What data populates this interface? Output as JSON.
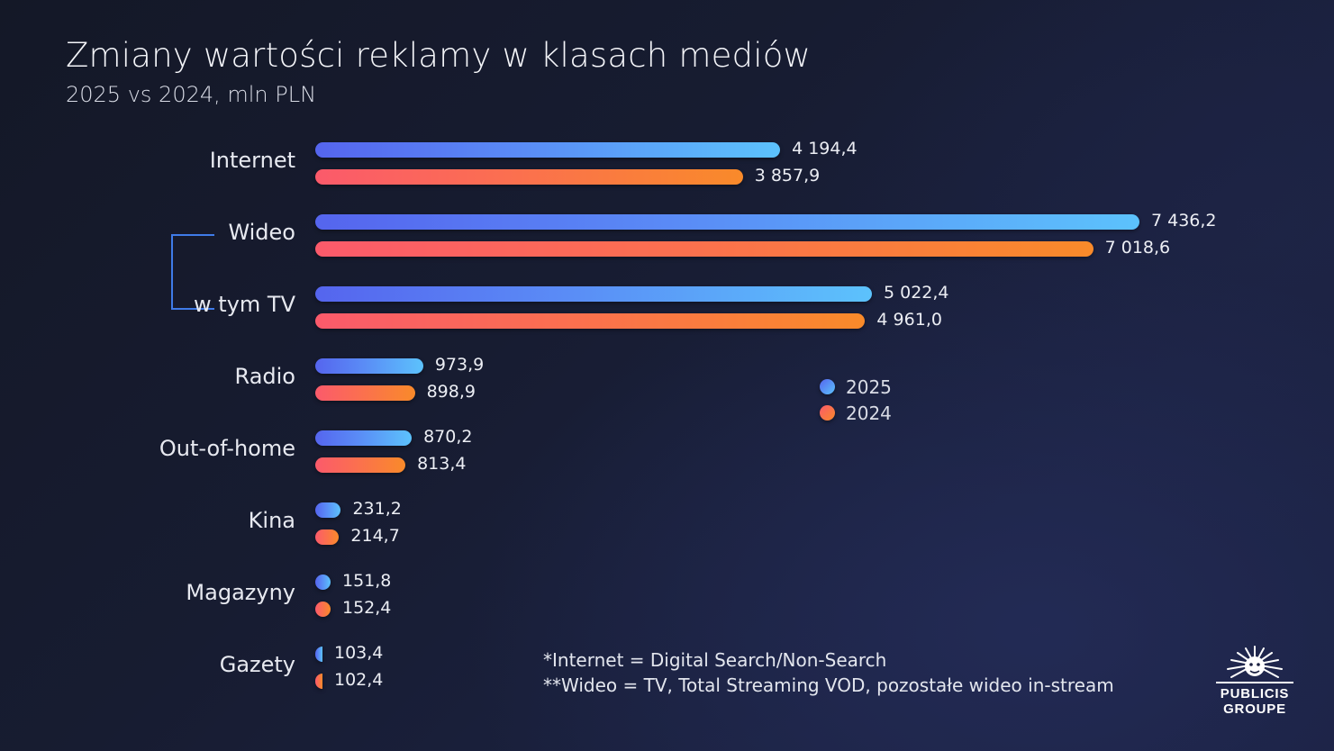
{
  "header": {
    "title": "Zmiany wartości reklamy w klasach mediów",
    "subtitle": "2025 vs 2024, mln PLN"
  },
  "legend": [
    {
      "label": "2025",
      "color_start": "#5565ee",
      "color_end": "#5cc2fc"
    },
    {
      "label": "2024",
      "color_start": "#fb5a6b",
      "color_end": "#f98a2a"
    }
  ],
  "rows": [
    {
      "label": "Internet",
      "v2025": 4194.4,
      "v2025_label": "4 194,4",
      "v2024": 3857.9,
      "v2024_label": "3 857,9"
    },
    {
      "label": "Wideo",
      "v2025": 7436.2,
      "v2025_label": "7 436,2",
      "v2024": 7018.6,
      "v2024_label": "7 018,6"
    },
    {
      "label": "w tym TV",
      "v2025": 5022.4,
      "v2025_label": "5 022,4",
      "v2024": 4961.0,
      "v2024_label": "4 961,0"
    },
    {
      "label": "Radio",
      "v2025": 973.9,
      "v2025_label": "973,9",
      "v2024": 898.9,
      "v2024_label": "898,9"
    },
    {
      "label": "Out-of-home",
      "v2025": 870.2,
      "v2025_label": "870,2",
      "v2024": 813.4,
      "v2024_label": "813,4"
    },
    {
      "label": "Kina",
      "v2025": 231.2,
      "v2025_label": "231,2",
      "v2024": 214.7,
      "v2024_label": "214,7"
    },
    {
      "label": "Magazyny",
      "v2025": 151.8,
      "v2025_label": "151,8",
      "v2024": 152.4,
      "v2024_label": "152,4"
    },
    {
      "label": "Gazety",
      "v2025": 103.4,
      "v2025_label": "103,4",
      "v2024": 102.4,
      "v2024_label": "102,4"
    }
  ],
  "footnotes": [
    "*Internet = Digital Search/Non-Search",
    "**Wideo = TV, Total Streaming VOD, pozostałe wideo in-stream"
  ],
  "logo": {
    "line1": "PUBLICIS",
    "line2": "GROUPE"
  },
  "colors": {
    "background": "#161b2e",
    "bracket": "#3f7be8",
    "text": "#eceef4"
  },
  "chart_data": {
    "type": "bar",
    "orientation": "horizontal",
    "title": "Zmiany wartości reklamy w klasach mediów",
    "subtitle": "2025 vs 2024, mln PLN",
    "xlabel": "",
    "ylabel": "",
    "categories": [
      "Internet",
      "Wideo",
      "w tym TV",
      "Radio",
      "Out-of-home",
      "Kina",
      "Magazyny",
      "Gazety"
    ],
    "series": [
      {
        "name": "2025",
        "values": [
          4194.4,
          7436.2,
          5022.4,
          973.9,
          870.2,
          231.2,
          151.8,
          103.4
        ]
      },
      {
        "name": "2024",
        "values": [
          3857.9,
          7018.6,
          4961.0,
          898.9,
          813.4,
          214.7,
          152.4,
          102.4
        ]
      }
    ],
    "unit": "mln PLN",
    "grid": false,
    "axis_visible": false,
    "data_labels": true,
    "legend_position": "center-right (inside plot)",
    "annotations": [
      "*Internet = Digital Search/Non-Search",
      "**Wideo = TV, Total Streaming VOD, pozostałe wideo in-stream",
      "bracket linking Wideo and w tym TV"
    ]
  }
}
